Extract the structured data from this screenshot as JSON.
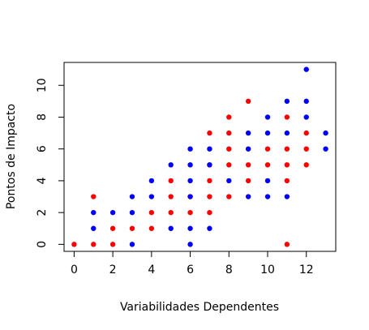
{
  "chart_data": {
    "type": "scatter",
    "title": "",
    "xlabel": "Variabilidades Dependentes",
    "ylabel": "Pontos de Impacto",
    "xlim": [
      -0.52,
      13.52
    ],
    "ylim": [
      -0.44,
      11.44
    ],
    "xticks": [
      0,
      2,
      4,
      6,
      8,
      10,
      12
    ],
    "yticks": [
      0,
      2,
      4,
      6,
      8,
      10
    ],
    "grid": false,
    "legend": "none",
    "series": [
      {
        "color": "#ff0000",
        "points": [
          [
            0,
            0
          ],
          [
            1,
            0
          ],
          [
            1,
            3
          ],
          [
            2,
            0
          ],
          [
            2,
            1
          ],
          [
            3,
            1
          ],
          [
            4,
            1
          ],
          [
            4,
            2
          ],
          [
            5,
            2
          ],
          [
            5,
            3
          ],
          [
            5,
            4
          ],
          [
            6,
            2
          ],
          [
            6,
            3
          ],
          [
            7,
            2
          ],
          [
            7,
            3
          ],
          [
            7,
            4
          ],
          [
            7,
            5
          ],
          [
            7,
            7
          ],
          [
            8,
            3
          ],
          [
            8,
            5
          ],
          [
            8,
            6
          ],
          [
            8,
            7
          ],
          [
            8,
            8
          ],
          [
            9,
            4
          ],
          [
            9,
            5
          ],
          [
            9,
            9
          ],
          [
            10,
            5
          ],
          [
            10,
            6
          ],
          [
            11,
            0
          ],
          [
            11,
            4
          ],
          [
            11,
            5
          ],
          [
            11,
            6
          ],
          [
            11,
            8
          ],
          [
            12,
            5
          ],
          [
            12,
            6
          ],
          [
            12,
            7
          ]
        ]
      },
      {
        "color": "#0000ff",
        "points": [
          [
            1,
            1
          ],
          [
            1,
            2
          ],
          [
            2,
            2
          ],
          [
            3,
            0
          ],
          [
            3,
            2
          ],
          [
            3,
            3
          ],
          [
            4,
            3
          ],
          [
            4,
            4
          ],
          [
            5,
            1
          ],
          [
            5,
            5
          ],
          [
            6,
            0
          ],
          [
            6,
            1
          ],
          [
            6,
            3
          ],
          [
            6,
            4
          ],
          [
            6,
            5
          ],
          [
            6,
            6
          ],
          [
            7,
            1
          ],
          [
            7,
            5
          ],
          [
            7,
            6
          ],
          [
            8,
            4
          ],
          [
            9,
            3
          ],
          [
            9,
            6
          ],
          [
            9,
            7
          ],
          [
            10,
            3
          ],
          [
            10,
            4
          ],
          [
            10,
            7
          ],
          [
            10,
            8
          ],
          [
            11,
            3
          ],
          [
            11,
            7
          ],
          [
            11,
            9
          ],
          [
            12,
            8
          ],
          [
            12,
            9
          ],
          [
            12,
            11
          ],
          [
            13,
            6
          ],
          [
            13,
            7
          ]
        ]
      }
    ]
  }
}
